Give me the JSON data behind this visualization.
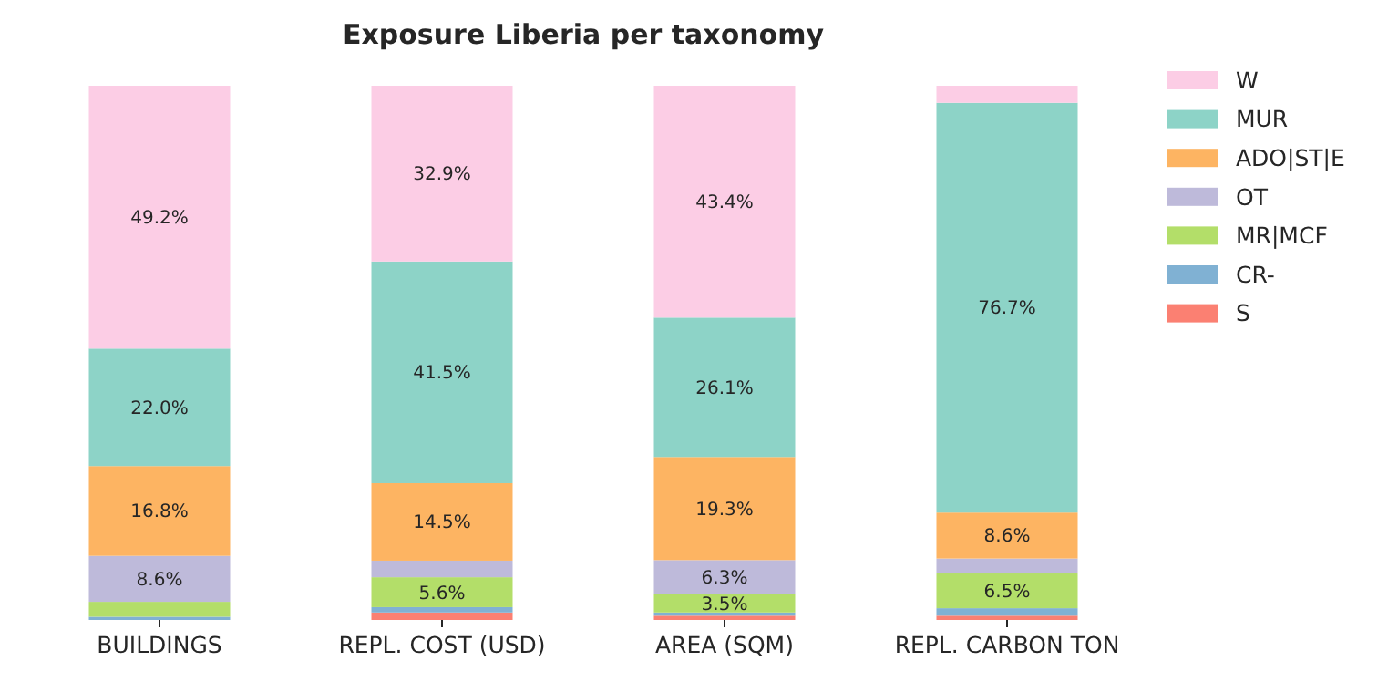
{
  "chart_data": {
    "type": "bar",
    "title": "Exposure Liberia per taxonomy",
    "stacked": true,
    "legend": "right",
    "categories": [
      "BUILDINGS",
      "REPL. COST (USD)",
      "AREA (SQM)",
      "REPL. CARBON TON"
    ],
    "series": [
      {
        "name": "S",
        "color": "#fb8072",
        "values": [
          0,
          1.4,
          0.8,
          0.8
        ],
        "value_labels": [
          null,
          null,
          null,
          null
        ]
      },
      {
        "name": "CR-",
        "color": "#80b1d3",
        "values": [
          0.6,
          1.0,
          0.6,
          1.4
        ],
        "value_labels": [
          null,
          null,
          null,
          null
        ]
      },
      {
        "name": "MR|MCF",
        "color": "#b3de69",
        "values": [
          2.8,
          5.6,
          3.5,
          6.5
        ],
        "value_labels": [
          null,
          "5.6%",
          "3.5%",
          "6.5%"
        ]
      },
      {
        "name": "OT",
        "color": "#bebada",
        "values": [
          8.6,
          3.1,
          6.3,
          2.8
        ],
        "value_labels": [
          "8.6%",
          null,
          "6.3%",
          null
        ]
      },
      {
        "name": "ADO|ST|E",
        "color": "#fdb462",
        "values": [
          16.8,
          14.5,
          19.3,
          8.6
        ],
        "value_labels": [
          "16.8%",
          "14.5%",
          "19.3%",
          "8.6%"
        ]
      },
      {
        "name": "MUR",
        "color": "#8dd3c7",
        "values": [
          22.0,
          41.5,
          26.1,
          76.7
        ],
        "value_labels": [
          "22.0%",
          "41.5%",
          "26.1%",
          "76.7%"
        ]
      },
      {
        "name": "W",
        "color": "#fccde5",
        "values": [
          49.2,
          32.9,
          43.4,
          3.2
        ],
        "value_labels": [
          "49.2%",
          "32.9%",
          "43.4%",
          null
        ]
      }
    ]
  }
}
